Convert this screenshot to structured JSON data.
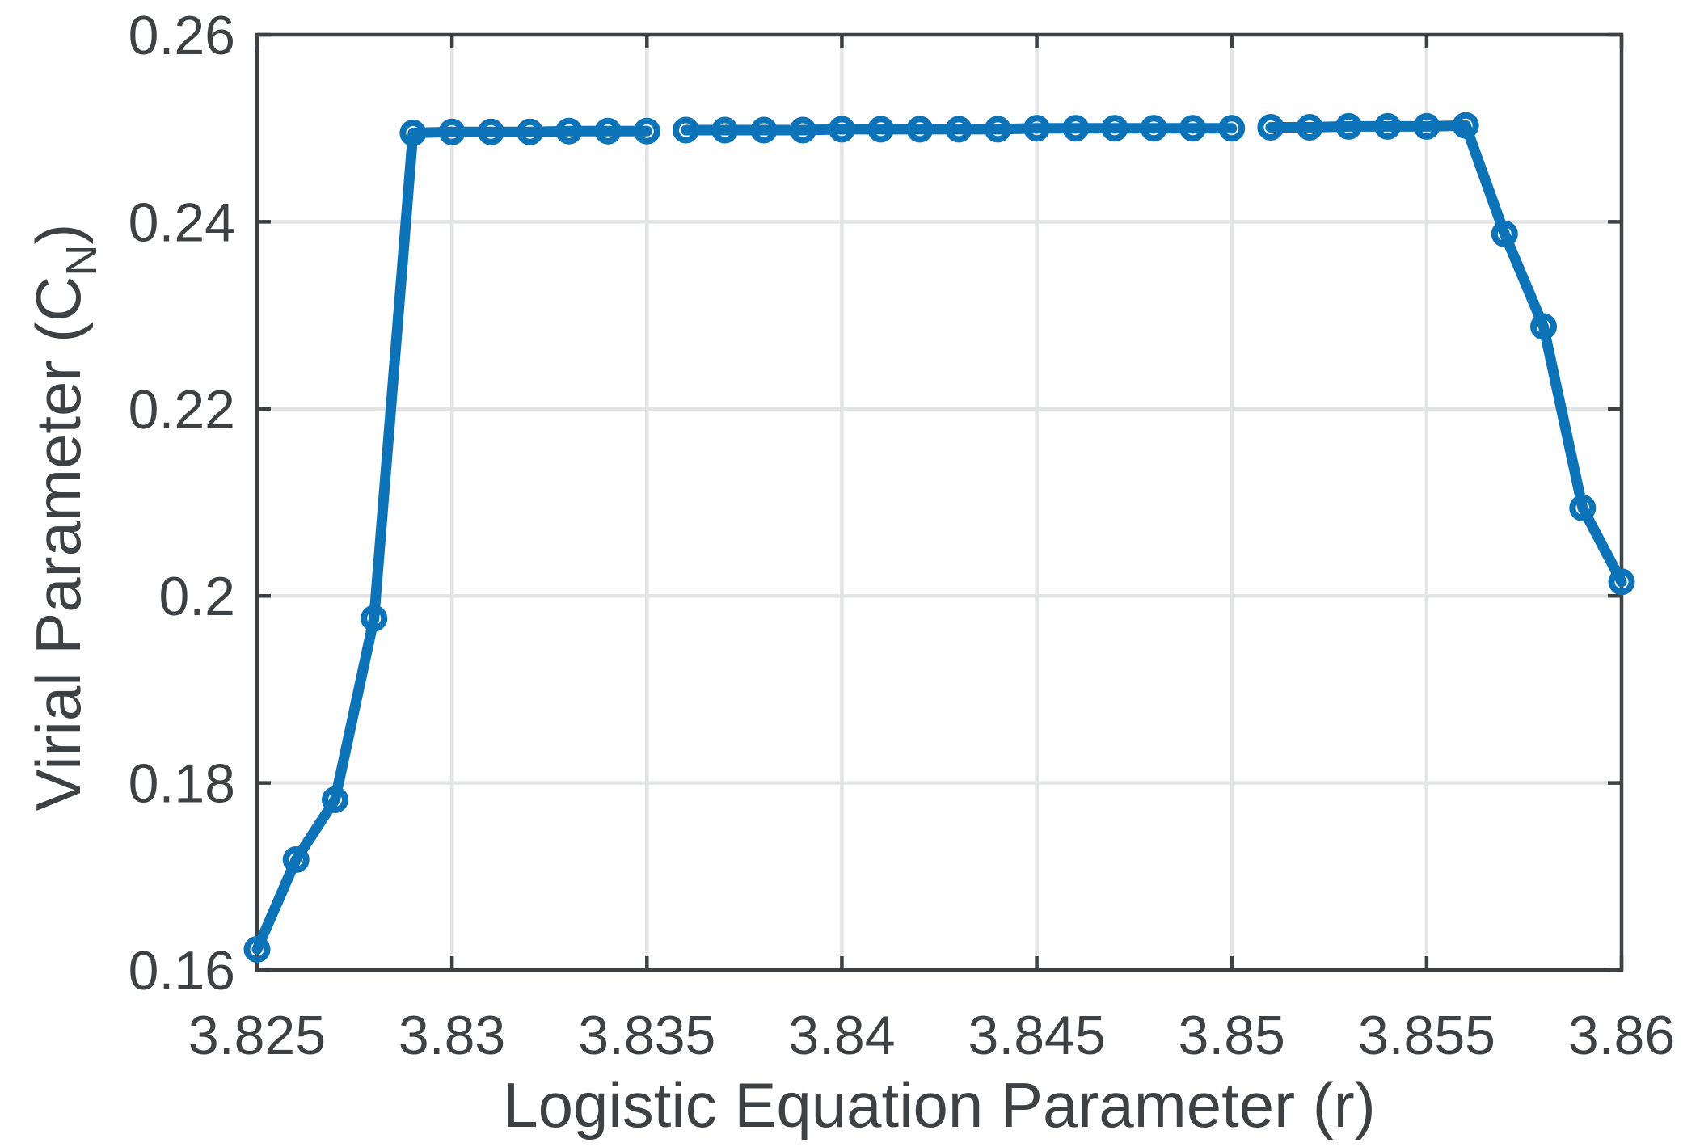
{
  "figure": {
    "background": "#ffffff",
    "ylabel_prefix": "Virial Parameter (C",
    "ylabel_sub": "N",
    "ylabel_suffix": ")"
  },
  "style": {
    "line_color": "#0d73b8",
    "axis_color": "#3e4144",
    "grid_color": "#e2e4e6",
    "text_color": "#3e4144",
    "background": "#ffffff"
  },
  "chart_data": {
    "type": "line",
    "title": "",
    "xlabel": "Logistic Equation Parameter (r)",
    "ylabel": "Virial Parameter (C_N)",
    "xlim": [
      3.825,
      3.86
    ],
    "ylim": [
      0.16,
      0.26
    ],
    "x_ticks": [
      3.825,
      3.83,
      3.835,
      3.84,
      3.845,
      3.85,
      3.855,
      3.86
    ],
    "x_tick_labels": [
      "3.825",
      "3.83",
      "3.835",
      "3.84",
      "3.845",
      "3.85",
      "3.855",
      "3.86"
    ],
    "y_ticks": [
      0.16,
      0.18,
      0.2,
      0.22,
      0.24,
      0.26
    ],
    "y_tick_labels": [
      "0.16",
      "0.18",
      "0.2",
      "0.22",
      "0.24",
      "0.26"
    ],
    "grid": true,
    "legend": false,
    "marker": "o",
    "series": [
      {
        "name": "C_N vs r",
        "segments": [
          [
            [
              3.825,
              0.1622
            ],
            [
              3.826,
              0.1718
            ],
            [
              3.827,
              0.1782
            ],
            [
              3.828,
              0.1976
            ],
            [
              3.829,
              0.2495
            ],
            [
              3.83,
              0.2496
            ],
            [
              3.831,
              0.2496
            ],
            [
              3.832,
              0.2496
            ],
            [
              3.833,
              0.2497
            ],
            [
              3.834,
              0.2497
            ],
            [
              3.835,
              0.2497
            ]
          ],
          [
            [
              3.836,
              0.2498
            ],
            [
              3.837,
              0.2498
            ],
            [
              3.838,
              0.2498
            ],
            [
              3.839,
              0.2498
            ],
            [
              3.84,
              0.2499
            ],
            [
              3.841,
              0.2499
            ],
            [
              3.842,
              0.2499
            ],
            [
              3.843,
              0.2499
            ],
            [
              3.844,
              0.2499
            ],
            [
              3.845,
              0.25
            ],
            [
              3.846,
              0.25
            ],
            [
              3.847,
              0.25
            ],
            [
              3.848,
              0.25
            ],
            [
              3.849,
              0.25
            ],
            [
              3.85,
              0.25
            ]
          ],
          [
            [
              3.851,
              0.2501
            ],
            [
              3.852,
              0.2501
            ],
            [
              3.853,
              0.2502
            ],
            [
              3.854,
              0.2502
            ],
            [
              3.855,
              0.2502
            ],
            [
              3.856,
              0.2503
            ],
            [
              3.857,
              0.2387
            ],
            [
              3.858,
              0.2288
            ],
            [
              3.859,
              0.2094
            ],
            [
              3.86,
              0.2015
            ]
          ]
        ]
      }
    ]
  }
}
